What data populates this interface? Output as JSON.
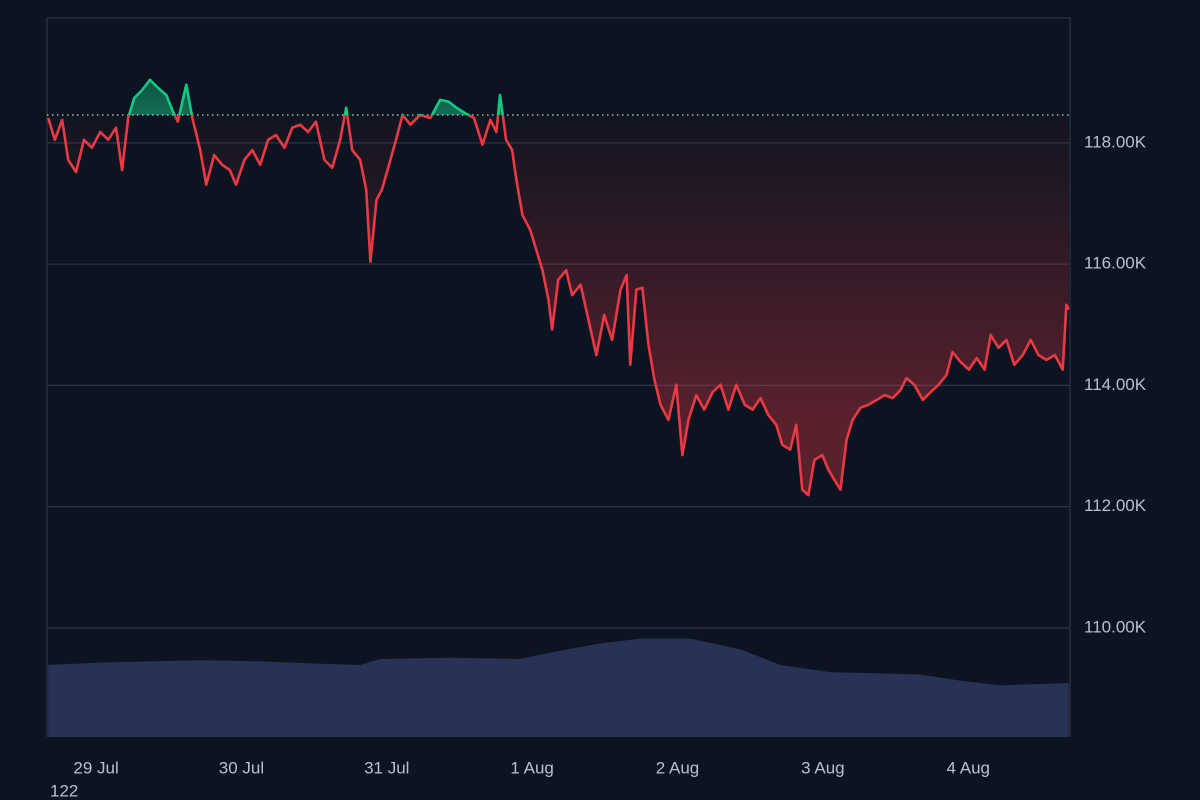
{
  "chart_data": {
    "type": "baseline-line",
    "x": [
      -7.9,
      -6.8,
      -5.6,
      -4.6,
      -3.3,
      -2.0,
      -0.7,
      0.7,
      2.0,
      3.3,
      4.3,
      5.3,
      6.3,
      7.6,
      8.9,
      10.2,
      11.6,
      12.6,
      13.5,
      14.9,
      15.9,
      17.2,
      18.2,
      19.5,
      20.8,
      22.1,
      23.1,
      24.5,
      25.8,
      27.1,
      28.4,
      29.7,
      31.1,
      32.4,
      33.7,
      35.0,
      36.3,
      37.7,
      39.0,
      40.3,
      41.3,
      42.3,
      43.6,
      44.6,
      45.3,
      46.3,
      47.2,
      48.6,
      49.6,
      50.6,
      51.9,
      53.5,
      55.2,
      56.8,
      58.2,
      59.5,
      61.1,
      62.4,
      63.8,
      65.1,
      66.1,
      66.7,
      67.7,
      68.7,
      69.4,
      70.4,
      71.7,
      72.7,
      73.7,
      74.7,
      75.3,
      76.3,
      77.6,
      78.6,
      80.0,
      81.3,
      82.6,
      83.9,
      85.2,
      86.6,
      87.6,
      88.2,
      89.2,
      90.2,
      91.2,
      92.2,
      93.2,
      94.5,
      95.8,
      96.8,
      97.8,
      99.1,
      100.4,
      101.8,
      103.1,
      104.4,
      105.7,
      107.1,
      108.4,
      109.7,
      111.0,
      112.3,
      113.3,
      114.6,
      115.6,
      116.6,
      117.6,
      118.6,
      119.9,
      120.9,
      121.9,
      122.9,
      123.9,
      124.9,
      126.2,
      127.5,
      128.9,
      130.2,
      131.5,
      132.8,
      133.8,
      135.1,
      136.5,
      137.8,
      139.1,
      140.4,
      141.4,
      142.7,
      144.1,
      145.4,
      146.7,
      147.7,
      149.0,
      150.3,
      151.6,
      153.0,
      154.3,
      155.6,
      156.9,
      158.3,
      159.6,
      160.2,
      160.6
    ],
    "series": [
      {
        "name": "Price",
        "color_up": "#16c784",
        "color_down": "#ea3943",
        "values": [
          118410,
          118050,
          118380,
          117720,
          117520,
          118050,
          117920,
          118180,
          118050,
          118250,
          117550,
          118410,
          118740,
          118870,
          119040,
          118910,
          118790,
          118540,
          118350,
          118960,
          118410,
          117880,
          117310,
          117800,
          117640,
          117550,
          117310,
          117720,
          117880,
          117640,
          118050,
          118130,
          117920,
          118250,
          118300,
          118180,
          118350,
          117720,
          117590,
          118050,
          118580,
          117880,
          117720,
          117230,
          116040,
          117060,
          117230,
          117720,
          118080,
          118460,
          118300,
          118460,
          118410,
          118710,
          118680,
          118580,
          118480,
          118410,
          117970,
          118380,
          118180,
          118790,
          118050,
          117880,
          117390,
          116810,
          116560,
          116230,
          115900,
          115410,
          114920,
          115740,
          115900,
          115490,
          115660,
          115080,
          114500,
          115160,
          114750,
          115580,
          115820,
          114340,
          115580,
          115610,
          114670,
          114090,
          113680,
          113430,
          114010,
          112850,
          113430,
          113840,
          113600,
          113890,
          114010,
          113600,
          114010,
          113680,
          113600,
          113790,
          113510,
          113350,
          113020,
          112940,
          113350,
          112280,
          112190,
          112770,
          112850,
          112610,
          112440,
          112280,
          113100,
          113430,
          113630,
          113680,
          113760,
          113840,
          113790,
          113920,
          114120,
          114010,
          113760,
          113890,
          114010,
          114170,
          114550,
          114390,
          114260,
          114450,
          114260,
          114830,
          114620,
          114750,
          114340,
          114500,
          114750,
          114500,
          114420,
          114500,
          114260,
          115330,
          115250
        ]
      }
    ],
    "baseline": 118460,
    "volume": {
      "color": "#283257",
      "x": [
        -7.9,
        0.7,
        8.9,
        17.2,
        27.1,
        37.0,
        43.6,
        46.9,
        58.5,
        70.0,
        76.7,
        83.3,
        89.9,
        98.1,
        106.4,
        113.0,
        121.3,
        129.5,
        136.1,
        142.7,
        149.3,
        160.6
      ],
      "values": [
        60,
        62,
        63,
        64,
        63,
        61,
        60,
        65,
        66,
        65,
        72,
        78,
        82,
        82,
        73,
        60,
        54,
        53,
        52,
        47,
        43,
        45
      ],
      "lim": [
        0,
        100
      ]
    },
    "xlim": [
      -8.1,
      160.8
    ],
    "xticks": [
      {
        "value": 0,
        "label": "29 Jul"
      },
      {
        "value": 24,
        "label": "30 Jul"
      },
      {
        "value": 48,
        "label": "31 Jul"
      },
      {
        "value": 72,
        "label": "1 Aug"
      },
      {
        "value": 96,
        "label": "2 Aug"
      },
      {
        "value": 120,
        "label": "3 Aug"
      },
      {
        "value": 144,
        "label": "4 Aug"
      }
    ],
    "ylim": [
      108200,
      120060
    ],
    "yticks": [
      {
        "value": 110000,
        "label": "110.00K"
      },
      {
        "value": 112000,
        "label": "112.00K"
      },
      {
        "value": 114000,
        "label": "114.00K"
      },
      {
        "value": 116000,
        "label": "116.00K"
      },
      {
        "value": 118000,
        "label": "118.00K"
      }
    ],
    "grid": true,
    "corner_text": "122"
  }
}
